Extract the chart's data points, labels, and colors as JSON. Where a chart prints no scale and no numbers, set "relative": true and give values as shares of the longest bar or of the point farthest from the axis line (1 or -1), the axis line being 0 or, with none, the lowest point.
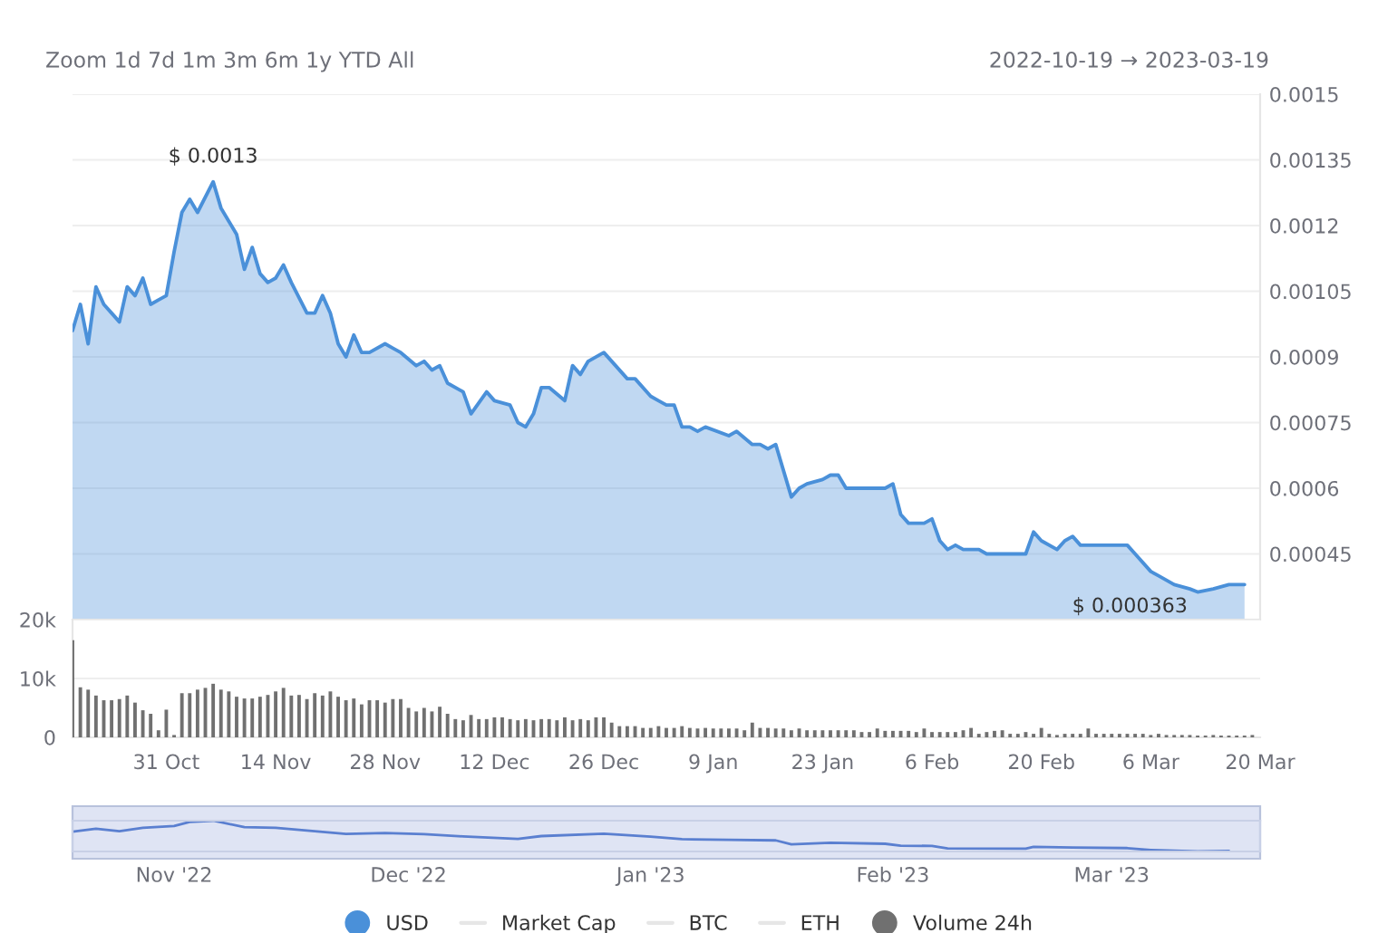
{
  "chart_data": [
    {
      "type": "area",
      "annotations": [
        "Zoom 1d 7d 1m 3m 6m 1y YTD All",
        "2022-10-19 → 2023-03-19",
        {
          "text": "$ 0.0013",
          "x": "2022-11-06",
          "y": 0.0013
        },
        {
          "text": "$ 0.000363",
          "x": "2023-03-12",
          "y": 0.000363
        }
      ],
      "xlim": [
        "2022-10-19",
        "2023-03-20"
      ],
      "ylim": [
        0.0003,
        0.0015
      ],
      "yticks": [
        0.00045,
        0.0006,
        0.00075,
        0.0009,
        0.00105,
        0.0012,
        0.00135,
        0.0015
      ],
      "tick_labels": "y",
      "grid": "y",
      "legend": "bottom",
      "series": [
        {
          "name": "USD",
          "color": "#4a90d9",
          "x": [
            "2022-10-19",
            "2022-10-20",
            "2022-10-21",
            "2022-10-22",
            "2022-10-23",
            "2022-10-24",
            "2022-10-25",
            "2022-10-26",
            "2022-10-27",
            "2022-10-28",
            "2022-10-29",
            "2022-10-30",
            "2022-10-31",
            "2022-11-01",
            "2022-11-02",
            "2022-11-03",
            "2022-11-04",
            "2022-11-06",
            "2022-11-07",
            "2022-11-08",
            "2022-11-09",
            "2022-11-10",
            "2022-11-11",
            "2022-11-12",
            "2022-11-13",
            "2022-11-14",
            "2022-11-15",
            "2022-11-16",
            "2022-11-18",
            "2022-11-19",
            "2022-11-20",
            "2022-11-21",
            "2022-11-22",
            "2022-11-23",
            "2022-11-24",
            "2022-11-25",
            "2022-11-26",
            "2022-11-28",
            "2022-11-29",
            "2022-11-30",
            "2022-12-02",
            "2022-12-03",
            "2022-12-04",
            "2022-12-05",
            "2022-12-06",
            "2022-12-08",
            "2022-12-09",
            "2022-12-11",
            "2022-12-12",
            "2022-12-14",
            "2022-12-15",
            "2022-12-16",
            "2022-12-17",
            "2022-12-18",
            "2022-12-19",
            "2022-12-21",
            "2022-12-22",
            "2022-12-23",
            "2022-12-24",
            "2022-12-26",
            "2022-12-29",
            "2022-12-30",
            "2023-01-01",
            "2023-01-02",
            "2023-01-03",
            "2023-01-04",
            "2023-01-05",
            "2023-01-06",
            "2023-01-07",
            "2023-01-08",
            "2023-01-11",
            "2023-01-12",
            "2023-01-14",
            "2023-01-15",
            "2023-01-16",
            "2023-01-17",
            "2023-01-19",
            "2023-01-20",
            "2023-01-21",
            "2023-01-23",
            "2023-01-24",
            "2023-01-25",
            "2023-01-26",
            "2023-01-27",
            "2023-01-29",
            "2023-01-30",
            "2023-01-31",
            "2023-02-01",
            "2023-02-02",
            "2023-02-03",
            "2023-02-04",
            "2023-02-05",
            "2023-02-06",
            "2023-02-07",
            "2023-02-08",
            "2023-02-09",
            "2023-02-10",
            "2023-02-12",
            "2023-02-13",
            "2023-02-14",
            "2023-02-15",
            "2023-02-16",
            "2023-02-17",
            "2023-02-18",
            "2023-02-19",
            "2023-02-20",
            "2023-02-22",
            "2023-02-23",
            "2023-02-24",
            "2023-02-25",
            "2023-02-27",
            "2023-02-28",
            "2023-03-01",
            "2023-03-03",
            "2023-03-04",
            "2023-03-06",
            "2023-03-07",
            "2023-03-09",
            "2023-03-11",
            "2023-03-12",
            "2023-03-14",
            "2023-03-16",
            "2023-03-18"
          ],
          "values": [
            0.00096,
            0.00102,
            0.00093,
            0.00106,
            0.00102,
            0.001,
            0.00098,
            0.00106,
            0.00104,
            0.00108,
            0.00102,
            0.00103,
            0.00104,
            0.00114,
            0.00123,
            0.00126,
            0.00123,
            0.0013,
            0.00124,
            0.00121,
            0.00118,
            0.0011,
            0.00115,
            0.00109,
            0.00107,
            0.00108,
            0.00111,
            0.00107,
            0.001,
            0.001,
            0.00104,
            0.001,
            0.00093,
            0.0009,
            0.00095,
            0.00091,
            0.00091,
            0.00093,
            0.00092,
            0.00091,
            0.00088,
            0.00089,
            0.00087,
            0.00088,
            0.00084,
            0.00082,
            0.00077,
            0.00082,
            0.0008,
            0.00079,
            0.00075,
            0.00074,
            0.00077,
            0.00083,
            0.00083,
            0.0008,
            0.00088,
            0.00086,
            0.00089,
            0.00091,
            0.00085,
            0.00085,
            0.00081,
            0.0008,
            0.00079,
            0.00079,
            0.00074,
            0.00074,
            0.00073,
            0.00074,
            0.00072,
            0.00073,
            0.0007,
            0.0007,
            0.00069,
            0.0007,
            0.00058,
            0.0006,
            0.00061,
            0.00062,
            0.00063,
            0.00063,
            0.0006,
            0.0006,
            0.0006,
            0.0006,
            0.0006,
            0.00061,
            0.00054,
            0.00052,
            0.00052,
            0.00052,
            0.00053,
            0.00048,
            0.00046,
            0.00047,
            0.00046,
            0.00046,
            0.00045,
            0.00045,
            0.00045,
            0.00045,
            0.00045,
            0.00045,
            0.0005,
            0.00048,
            0.00046,
            0.00048,
            0.00049,
            0.00047,
            0.00047,
            0.00047,
            0.00047,
            0.00047,
            0.00045,
            0.00041,
            0.0004,
            0.00038,
            0.00037,
            0.000363,
            0.00037,
            0.00038,
            0.00038
          ]
        },
        {
          "name": "Market Cap",
          "type": "line",
          "color": "#e6e6e6"
        },
        {
          "name": "BTC",
          "type": "line",
          "color": "#e6e6e6"
        },
        {
          "name": "ETH",
          "type": "line",
          "color": "#e6e6e6"
        }
      ]
    },
    {
      "type": "bar",
      "xlim": [
        "2022-10-19",
        "2023-03-20"
      ],
      "ylim": [
        0,
        20000
      ],
      "yticks": [
        0,
        {
          "value": 10000,
          "label": "10k"
        },
        {
          "value": 20000,
          "label": "20k"
        }
      ],
      "grid": "y",
      "xticks": [
        {
          "value": "2022-10-31",
          "label": "31 Oct"
        },
        {
          "value": "2022-11-14",
          "label": "14 Nov"
        },
        {
          "value": "2022-11-28",
          "label": "28 Nov"
        },
        {
          "value": "2022-12-12",
          "label": "12 Dec"
        },
        {
          "value": "2022-12-26",
          "label": "26 Dec"
        },
        {
          "value": "2023-01-09",
          "label": "9 Jan"
        },
        {
          "value": "2023-01-23",
          "label": "23 Jan"
        },
        {
          "value": "2023-02-06",
          "label": "6 Feb"
        },
        {
          "value": "2023-02-20",
          "label": "20 Feb"
        },
        {
          "value": "2023-03-06",
          "label": "6 Mar"
        },
        {
          "value": "2023-03-20",
          "label": "20 Mar"
        }
      ],
      "series": [
        {
          "name": "Volume 24h",
          "color": "#707070",
          "x": [
            "2022-10-19",
            "2022-10-20",
            "2022-10-21",
            "2022-10-22",
            "2022-10-23",
            "2022-10-24",
            "2022-10-25",
            "2022-10-26",
            "2022-10-27",
            "2022-10-28",
            "2022-10-29",
            "2022-10-30",
            "2022-10-31",
            "2022-11-01",
            "2022-11-02",
            "2022-11-03",
            "2022-11-04",
            "2022-11-05",
            "2022-11-06",
            "2022-11-07",
            "2022-11-08",
            "2022-11-09",
            "2022-11-10",
            "2022-11-11",
            "2022-11-12",
            "2022-11-13",
            "2022-11-14",
            "2022-11-15",
            "2022-11-16",
            "2022-11-17",
            "2022-11-18",
            "2022-11-19",
            "2022-11-20",
            "2022-11-21",
            "2022-11-22",
            "2022-11-23",
            "2022-11-24",
            "2022-11-25",
            "2022-11-26",
            "2022-11-27",
            "2022-11-28",
            "2022-11-29",
            "2022-11-30",
            "2022-12-01",
            "2022-12-02",
            "2022-12-03",
            "2022-12-04",
            "2022-12-05",
            "2022-12-06",
            "2022-12-07",
            "2022-12-08",
            "2022-12-09",
            "2022-12-10",
            "2022-12-11",
            "2022-12-12",
            "2022-12-13",
            "2022-12-14",
            "2022-12-15",
            "2022-12-16",
            "2022-12-17",
            "2022-12-18",
            "2022-12-19",
            "2022-12-20",
            "2022-12-21",
            "2022-12-22",
            "2022-12-23",
            "2022-12-24",
            "2022-12-25",
            "2022-12-26",
            "2022-12-27",
            "2022-12-28",
            "2022-12-29",
            "2022-12-30",
            "2022-12-31",
            "2023-01-01",
            "2023-01-02",
            "2023-01-03",
            "2023-01-04",
            "2023-01-05",
            "2023-01-06",
            "2023-01-07",
            "2023-01-08",
            "2023-01-09",
            "2023-01-10",
            "2023-01-11",
            "2023-01-12",
            "2023-01-13",
            "2023-01-14",
            "2023-01-15",
            "2023-01-16",
            "2023-01-17",
            "2023-01-18",
            "2023-01-19",
            "2023-01-20",
            "2023-01-21",
            "2023-01-22",
            "2023-01-23",
            "2023-01-24",
            "2023-01-25",
            "2023-01-26",
            "2023-01-27",
            "2023-01-28",
            "2023-01-29",
            "2023-01-30",
            "2023-01-31",
            "2023-02-01",
            "2023-02-02",
            "2023-02-03",
            "2023-02-04",
            "2023-02-05",
            "2023-02-06",
            "2023-02-07",
            "2023-02-08",
            "2023-02-09",
            "2023-02-10",
            "2023-02-11",
            "2023-02-12",
            "2023-02-13",
            "2023-02-14",
            "2023-02-15",
            "2023-02-16",
            "2023-02-17",
            "2023-02-18",
            "2023-02-19",
            "2023-02-20",
            "2023-02-21",
            "2023-02-22",
            "2023-02-23",
            "2023-02-24",
            "2023-02-25",
            "2023-02-26",
            "2023-02-27",
            "2023-02-28",
            "2023-03-01",
            "2023-03-02",
            "2023-03-03",
            "2023-03-04",
            "2023-03-05",
            "2023-03-06",
            "2023-03-07",
            "2023-03-08",
            "2023-03-09",
            "2023-03-10",
            "2023-03-11",
            "2023-03-12",
            "2023-03-13",
            "2023-03-14",
            "2023-03-15",
            "2023-03-16",
            "2023-03-17",
            "2023-03-18",
            "2023-03-19"
          ],
          "values": [
            16500,
            8500,
            8100,
            7100,
            6300,
            6300,
            6500,
            7100,
            5900,
            4600,
            4000,
            1200,
            4700,
            400,
            7500,
            7500,
            8100,
            8400,
            9100,
            8100,
            7800,
            6900,
            6600,
            6600,
            6900,
            7200,
            7800,
            8400,
            7100,
            7200,
            6500,
            7500,
            7100,
            7800,
            6900,
            6300,
            6600,
            5600,
            6300,
            6300,
            5900,
            6500,
            6500,
            5000,
            4400,
            5000,
            4400,
            5200,
            4000,
            3100,
            2900,
            3800,
            3100,
            3100,
            3400,
            3400,
            3100,
            2900,
            3100,
            2900,
            3100,
            3100,
            2900,
            3400,
            2900,
            3100,
            2900,
            3400,
            3400,
            2500,
            1900,
            1900,
            1900,
            1600,
            1600,
            1900,
            1600,
            1600,
            1900,
            1600,
            1500,
            1600,
            1500,
            1500,
            1500,
            1500,
            1200,
            2500,
            1600,
            1600,
            1500,
            1500,
            1200,
            1500,
            1200,
            1200,
            1200,
            1200,
            1200,
            1200,
            1200,
            900,
            900,
            1500,
            1100,
            1100,
            1100,
            1100,
            900,
            1500,
            900,
            900,
            900,
            900,
            1200,
            1600,
            600,
            900,
            1100,
            1200,
            600,
            600,
            900,
            600,
            1600,
            600,
            400,
            600,
            600,
            600,
            1500,
            600,
            600,
            600,
            600,
            600,
            600,
            600,
            400,
            600,
            400,
            400,
            400,
            400,
            300,
            300,
            400,
            300,
            300,
            300,
            300,
            400
          ]
        }
      ]
    },
    {
      "type": "line",
      "relative": true,
      "xlim": [
        "2022-10-19",
        "2023-03-20"
      ],
      "tick_labels": "x",
      "xticks": [
        {
          "value": "2022-11-01",
          "label": "Nov '22"
        },
        {
          "value": "2022-12-01",
          "label": "Dec '22"
        },
        {
          "value": "2023-01-01",
          "label": "Jan '23"
        },
        {
          "value": "2023-02-01",
          "label": "Feb '23"
        },
        {
          "value": "2023-03-01",
          "label": "Mar '23"
        }
      ],
      "series": [
        {
          "color": "#5a7fd0",
          "x": [
            "2022-10-19",
            "2022-10-22",
            "2022-10-25",
            "2022-10-28",
            "2022-11-01",
            "2022-11-03",
            "2022-11-06",
            "2022-11-10",
            "2022-11-14",
            "2022-11-18",
            "2022-11-23",
            "2022-11-28",
            "2022-12-03",
            "2022-12-08",
            "2022-12-15",
            "2022-12-18",
            "2022-12-26",
            "2023-01-01",
            "2023-01-05",
            "2023-01-11",
            "2023-01-17",
            "2023-01-19",
            "2023-01-24",
            "2023-01-31",
            "2023-02-02",
            "2023-02-06",
            "2023-02-08",
            "2023-02-18",
            "2023-02-19",
            "2023-02-24",
            "2023-03-03",
            "2023-03-06",
            "2023-03-12",
            "2023-03-16"
          ],
          "values": [
            0.64,
            0.74,
            0.66,
            0.77,
            0.83,
            0.96,
            1,
            0.79,
            0.77,
            0.68,
            0.57,
            0.6,
            0.56,
            0.49,
            0.41,
            0.5,
            0.58,
            0.48,
            0.4,
            0.38,
            0.36,
            0.23,
            0.28,
            0.25,
            0.19,
            0.18,
            0.1,
            0.09,
            0.15,
            0.13,
            0.11,
            0.05,
            0,
            0.02
          ]
        }
      ]
    }
  ]
}
